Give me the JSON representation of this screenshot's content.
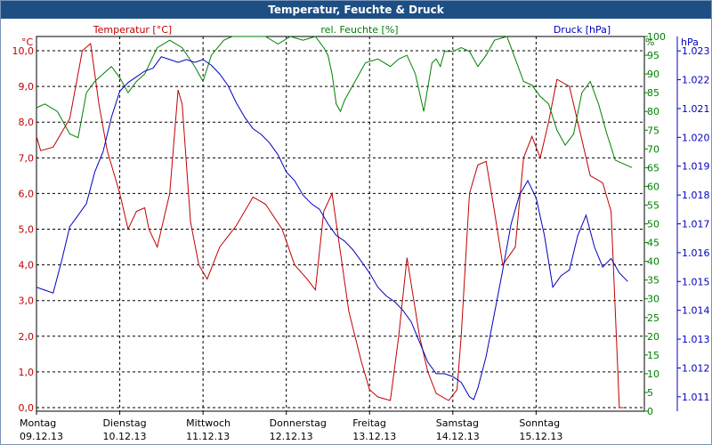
{
  "window": {
    "title": "Temperatur, Feuchte & Druck"
  },
  "chart_data": {
    "type": "line",
    "title": "Temperatur, Feuchte & Druck",
    "x_labels": [
      {
        "day": "Montag",
        "date": "09.12.13"
      },
      {
        "day": "Dienstag",
        "date": "10.12.13"
      },
      {
        "day": "Mittwoch",
        "date": "11.12.13"
      },
      {
        "day": "Donnerstag",
        "date": "12.12.13"
      },
      {
        "day": "Freitag",
        "date": "13.12.13"
      },
      {
        "day": "Samstag",
        "date": "14.12.13"
      },
      {
        "day": "Sonntag",
        "date": "15.12.13"
      }
    ],
    "x_range_days": [
      0,
      7.3
    ],
    "grid": true,
    "axes": {
      "temperature": {
        "unit": "°C",
        "label": "Temperatur [°C]",
        "color": "#c00000",
        "range": [
          -0.1,
          10.4
        ],
        "ticks": [
          "0,0",
          "1,0",
          "2,0",
          "3,0",
          "4,0",
          "5,0",
          "6,0",
          "7,0",
          "8,0",
          "9,0",
          "10,0"
        ]
      },
      "humidity": {
        "unit": "%",
        "label": "rel. Feuchte [%]",
        "color": "#008000",
        "range": [
          0,
          100
        ],
        "ticks": [
          "0",
          "5",
          "10",
          "15",
          "20",
          "25",
          "30",
          "35",
          "40",
          "45",
          "50",
          "55",
          "60",
          "65",
          "70",
          "75",
          "80",
          "85",
          "90",
          "95",
          "100"
        ]
      },
      "pressure": {
        "unit": "hPa",
        "label": "Druck [hPa]",
        "color": "#0000c0",
        "range": [
          1.0105,
          1.0235
        ],
        "ticks": [
          "1.011",
          "1.012",
          "1.013",
          "1.014",
          "1.015",
          "1.016",
          "1.017",
          "1.018",
          "1.019",
          "1.020",
          "1.021",
          "1.022",
          "1.023"
        ]
      }
    },
    "series": [
      {
        "name": "Temperatur [°C]",
        "axis": "temperature",
        "color": "#c00000",
        "x": [
          0,
          0.05,
          0.2,
          0.4,
          0.55,
          0.65,
          0.75,
          0.85,
          1.0,
          1.1,
          1.2,
          1.3,
          1.35,
          1.45,
          1.55,
          1.6,
          1.7,
          1.75,
          1.85,
          1.95,
          2.05,
          2.2,
          2.4,
          2.6,
          2.75,
          2.95,
          3.1,
          3.25,
          3.35,
          3.45,
          3.55,
          3.75,
          3.9,
          4.0,
          4.1,
          4.25,
          4.35,
          4.45,
          4.6,
          4.7,
          4.8,
          4.95,
          5.05,
          5.1,
          5.2,
          5.3,
          5.4,
          5.5,
          5.6,
          5.75,
          5.85,
          5.95,
          6.05,
          6.15,
          6.25,
          6.4,
          6.5,
          6.65,
          6.8,
          6.9,
          7.0,
          7.05,
          7.15,
          7.25
        ],
        "values": [
          7.6,
          7.2,
          7.3,
          8.1,
          10.0,
          10.2,
          8.5,
          7.2,
          6.0,
          5.0,
          5.5,
          5.6,
          5.0,
          4.5,
          5.5,
          6.0,
          8.9,
          8.5,
          5.2,
          4.0,
          3.6,
          4.5,
          5.1,
          5.9,
          5.7,
          5.0,
          4.0,
          3.6,
          3.3,
          5.5,
          6.0,
          2.7,
          1.3,
          0.5,
          0.3,
          0.2,
          2.0,
          4.2,
          2.0,
          1.0,
          0.4,
          0.2,
          0.5,
          2.0,
          6.0,
          6.8,
          6.9,
          5.5,
          4.0,
          4.5,
          7.0,
          7.6,
          7.0,
          8.0,
          9.2,
          9.0,
          8.0,
          6.5,
          6.3,
          5.5,
          0,
          0,
          0,
          0
        ]
      },
      {
        "name": "rel. Feuchte [%]",
        "axis": "humidity",
        "color": "#008000",
        "x": [
          0,
          0.1,
          0.25,
          0.4,
          0.5,
          0.6,
          0.7,
          0.8,
          0.9,
          1.0,
          1.1,
          1.2,
          1.3,
          1.45,
          1.6,
          1.75,
          1.9,
          2.0,
          2.1,
          2.25,
          2.35,
          2.5,
          2.6,
          2.75,
          2.9,
          3.05,
          3.2,
          3.35,
          3.45,
          3.5,
          3.55,
          3.6,
          3.65,
          3.7,
          3.8,
          3.95,
          4.1,
          4.25,
          4.35,
          4.45,
          4.55,
          4.65,
          4.75,
          4.8,
          4.85,
          4.9,
          5.0,
          5.1,
          5.2,
          5.3,
          5.4,
          5.5,
          5.65,
          5.75,
          5.85,
          5.95,
          6.05,
          6.15,
          6.25,
          6.35,
          6.45,
          6.55,
          6.65,
          6.75,
          6.85,
          6.95,
          7.05,
          7.15
        ],
        "values": [
          81,
          82,
          80,
          74,
          73,
          85,
          88,
          90,
          92,
          89,
          85,
          88,
          90,
          97,
          99,
          97,
          92,
          88,
          95,
          99,
          100,
          100,
          100,
          100,
          98,
          100,
          99,
          100,
          97,
          95,
          90,
          82,
          80,
          83,
          87,
          93,
          94,
          92,
          94,
          95,
          90,
          80,
          93,
          94,
          92,
          96,
          96,
          97,
          96,
          92,
          95,
          99,
          100,
          94,
          88,
          87,
          84,
          82,
          75,
          71,
          74,
          85,
          88,
          82,
          74,
          67,
          66,
          65
        ]
      },
      {
        "name": "Druck [hPa]",
        "axis": "pressure",
        "color": "#0000c0",
        "x": [
          0,
          0.1,
          0.2,
          0.3,
          0.4,
          0.5,
          0.6,
          0.7,
          0.8,
          0.9,
          1.0,
          1.1,
          1.2,
          1.3,
          1.4,
          1.5,
          1.6,
          1.7,
          1.8,
          1.9,
          2.0,
          2.1,
          2.2,
          2.3,
          2.4,
          2.5,
          2.6,
          2.7,
          2.8,
          2.9,
          3.0,
          3.1,
          3.2,
          3.3,
          3.4,
          3.5,
          3.6,
          3.7,
          3.8,
          3.9,
          4.0,
          4.1,
          4.2,
          4.3,
          4.4,
          4.5,
          4.6,
          4.7,
          4.8,
          4.9,
          5.0,
          5.1,
          5.2,
          5.25,
          5.3,
          5.4,
          5.5,
          5.6,
          5.7,
          5.8,
          5.9,
          6.0,
          6.1,
          6.2,
          6.3,
          6.4,
          6.5,
          6.6,
          6.7,
          6.8,
          6.9,
          7.0,
          7.1
        ],
        "values": [
          1.0148,
          1.0147,
          1.0146,
          1.0157,
          1.0169,
          1.0173,
          1.0177,
          1.0188,
          1.0195,
          1.0207,
          1.0216,
          1.0219,
          1.0221,
          1.0223,
          1.0224,
          1.0228,
          1.0227,
          1.0226,
          1.0227,
          1.0226,
          1.0227,
          1.0225,
          1.0222,
          1.0218,
          1.0212,
          1.0207,
          1.0203,
          1.0201,
          1.0198,
          1.0194,
          1.0188,
          1.0185,
          1.018,
          1.0177,
          1.0175,
          1.017,
          1.0166,
          1.0164,
          1.0161,
          1.0157,
          1.0153,
          1.0148,
          1.0145,
          1.0143,
          1.014,
          1.0136,
          1.0129,
          1.0122,
          1.0118,
          1.0118,
          1.0117,
          1.0115,
          1.011,
          1.0109,
          1.0113,
          1.0124,
          1.0139,
          1.0154,
          1.017,
          1.018,
          1.0185,
          1.0179,
          1.0166,
          1.0148,
          1.0152,
          1.0154,
          1.0166,
          1.0173,
          1.0162,
          1.0155,
          1.0158,
          1.0153,
          1.015
        ]
      }
    ]
  }
}
